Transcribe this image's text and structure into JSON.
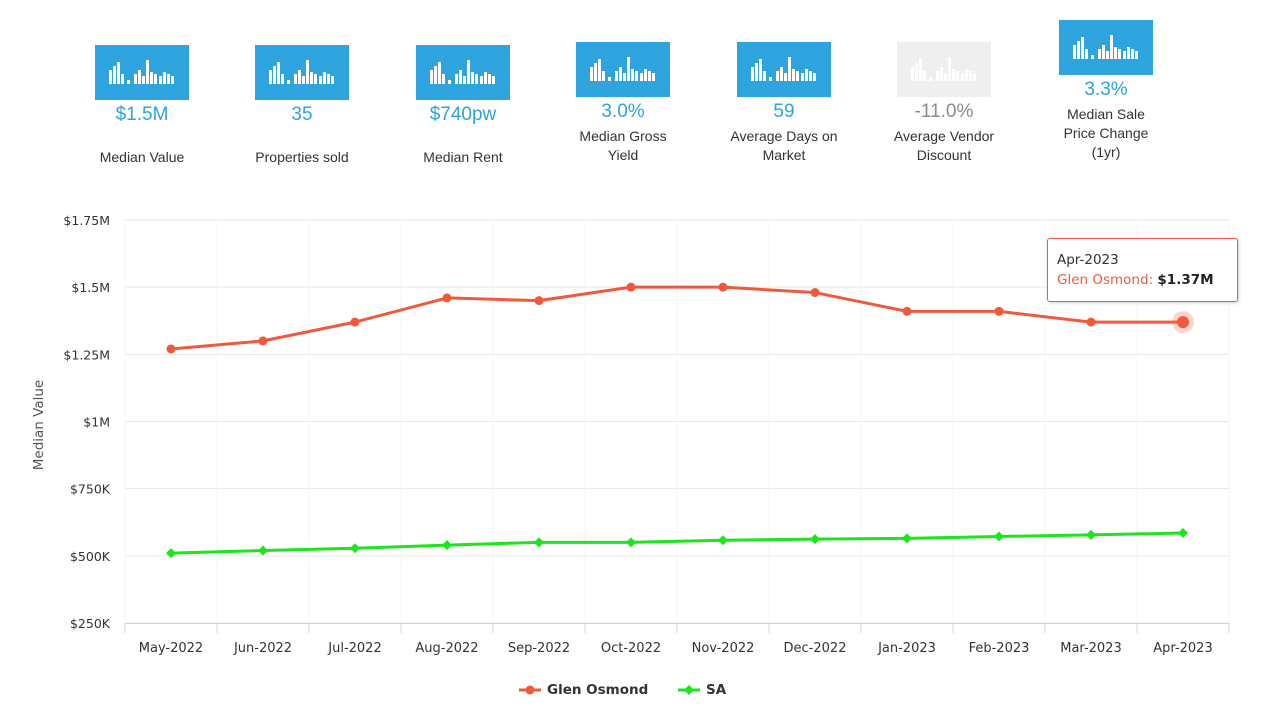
{
  "stats": [
    {
      "value": "$1.5M",
      "label": "Median Value",
      "disabled": false
    },
    {
      "value": "35",
      "label": "Properties sold",
      "disabled": false
    },
    {
      "value": "$740pw",
      "label": "Median Rent",
      "disabled": false
    },
    {
      "value": "3.0%",
      "label": "Median Gross Yield",
      "disabled": false
    },
    {
      "value": "59",
      "label": "Average Days on Market",
      "disabled": false
    },
    {
      "value": "-11.0%",
      "label": "Average Vendor Discount",
      "disabled": true
    },
    {
      "value": "3.3%",
      "label": "Median Sale Price Change (1yr)",
      "disabled": false
    }
  ],
  "tooltip": {
    "date": "Apr-2023",
    "series": "Glen Osmond",
    "value": "$1.37M"
  },
  "colors": {
    "accent": "#2ea3dd",
    "glen": "#f05a3c",
    "sa": "#1be51b"
  },
  "chart_data": {
    "type": "line",
    "title": "",
    "xlabel": "",
    "ylabel": "Median Value",
    "categories": [
      "May-2022",
      "Jun-2022",
      "Jul-2022",
      "Aug-2022",
      "Sep-2022",
      "Oct-2022",
      "Nov-2022",
      "Dec-2022",
      "Jan-2023",
      "Feb-2023",
      "Mar-2023",
      "Apr-2023"
    ],
    "ylim": [
      250000,
      1750000
    ],
    "yticks": [
      250000,
      500000,
      750000,
      1000000,
      1250000,
      1500000,
      1750000
    ],
    "ytick_labels": [
      "$250K",
      "$500K",
      "$750K",
      "$1M",
      "$1.25M",
      "$1.5M",
      "$1.75M"
    ],
    "series": [
      {
        "name": "Glen Osmond",
        "color": "#f05a3c",
        "marker": "circle",
        "values": [
          1270000,
          1300000,
          1370000,
          1460000,
          1450000,
          1500000,
          1500000,
          1480000,
          1410000,
          1410000,
          1370000,
          1370000
        ]
      },
      {
        "name": "SA",
        "color": "#1be51b",
        "marker": "diamond",
        "values": [
          510000,
          520000,
          528000,
          540000,
          550000,
          550000,
          558000,
          562000,
          565000,
          572000,
          578000,
          585000
        ]
      }
    ],
    "grid": true,
    "legend": "bottom-center"
  }
}
